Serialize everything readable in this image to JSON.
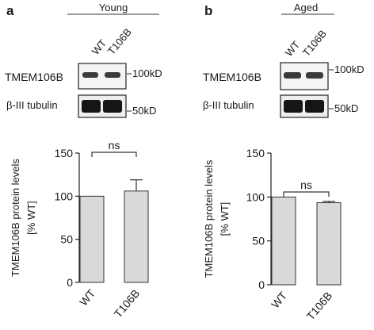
{
  "panels": [
    {
      "letter": "a",
      "group_label": "Young",
      "lanes": [
        "WT",
        "T106B"
      ],
      "blot_rows": [
        {
          "label": "TMEM106B",
          "marker": "100kD"
        },
        {
          "label": "β-III tubulin",
          "marker": "50kD"
        }
      ],
      "significance": "ns"
    },
    {
      "letter": "b",
      "group_label": "Aged",
      "lanes": [
        "WT",
        "T106B"
      ],
      "blot_rows": [
        {
          "label": "TMEM106B",
          "marker": "100kD"
        },
        {
          "label": "β-III tubulin",
          "marker": "50kD"
        }
      ],
      "significance": "ns"
    }
  ],
  "chart_data": [
    {
      "type": "bar",
      "categories": [
        "WT",
        "T106B"
      ],
      "values": [
        100,
        106
      ],
      "errors": [
        0,
        13
      ],
      "ylabel_line1": "TMEM106B protein levels",
      "ylabel_line2": "[% WT]",
      "ylim": [
        0,
        150
      ],
      "yticks": [
        0,
        50,
        100,
        150
      ],
      "bar_color": "#d9d9d9"
    },
    {
      "type": "bar",
      "categories": [
        "WT",
        "T106B"
      ],
      "values": [
        100,
        93.5
      ],
      "errors": [
        0,
        1.5
      ],
      "ylabel_line1": "TMEM106B protein levels",
      "ylabel_line2": "[% WT]",
      "ylim": [
        0,
        150
      ],
      "yticks": [
        0,
        50,
        100,
        150
      ],
      "bar_color": "#d9d9d9"
    }
  ]
}
